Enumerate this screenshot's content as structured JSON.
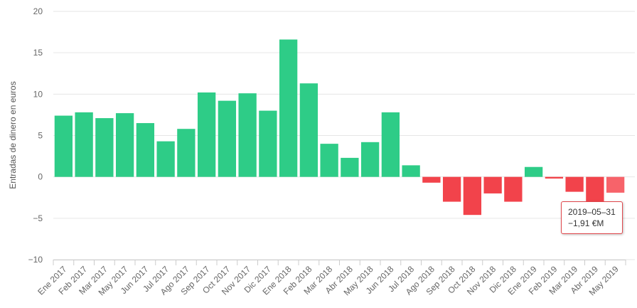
{
  "chart_data": {
    "type": "bar",
    "ylabel": "Entradas de dinero en euros",
    "ylim": [
      -10,
      20
    ],
    "yticks": [
      -10,
      -5,
      0,
      5,
      10,
      15,
      20
    ],
    "grid": true,
    "categories": [
      "Ene 2017",
      "Feb 2017",
      "Mar 2017",
      "May 2017",
      "Jun 2017",
      "Jul 2017",
      "Ago 2017",
      "Sep 2017",
      "Oct 2017",
      "Nov 2017",
      "Dic 2017",
      "Ene 2018",
      "Feb 2018",
      "Mar 2018",
      "Abr 2018",
      "May 2018",
      "Jun 2018",
      "Jul 2018",
      "Ago 2018",
      "Sep 2018",
      "Oct 2018",
      "Nov 2018",
      "Dic 2018",
      "Ene 2019",
      "Feb 2019",
      "Mar 2019",
      "Abr 2019",
      "May 2019"
    ],
    "values": [
      7.4,
      7.8,
      7.1,
      7.7,
      6.5,
      4.3,
      5.8,
      10.2,
      9.2,
      10.1,
      8.0,
      16.6,
      11.3,
      4.0,
      2.3,
      4.2,
      7.8,
      1.4,
      -0.7,
      -3.0,
      -4.6,
      -2.0,
      -3.0,
      1.2,
      -0.2,
      -1.8,
      -3.6,
      -1.91
    ],
    "colors": {
      "positive": "#2ecc87",
      "negative": "#f2434b",
      "highlight": "#f7636a"
    },
    "highlight_index": 27
  },
  "tooltip": {
    "date": "2019–05–31",
    "value": "−1,91 €M"
  }
}
